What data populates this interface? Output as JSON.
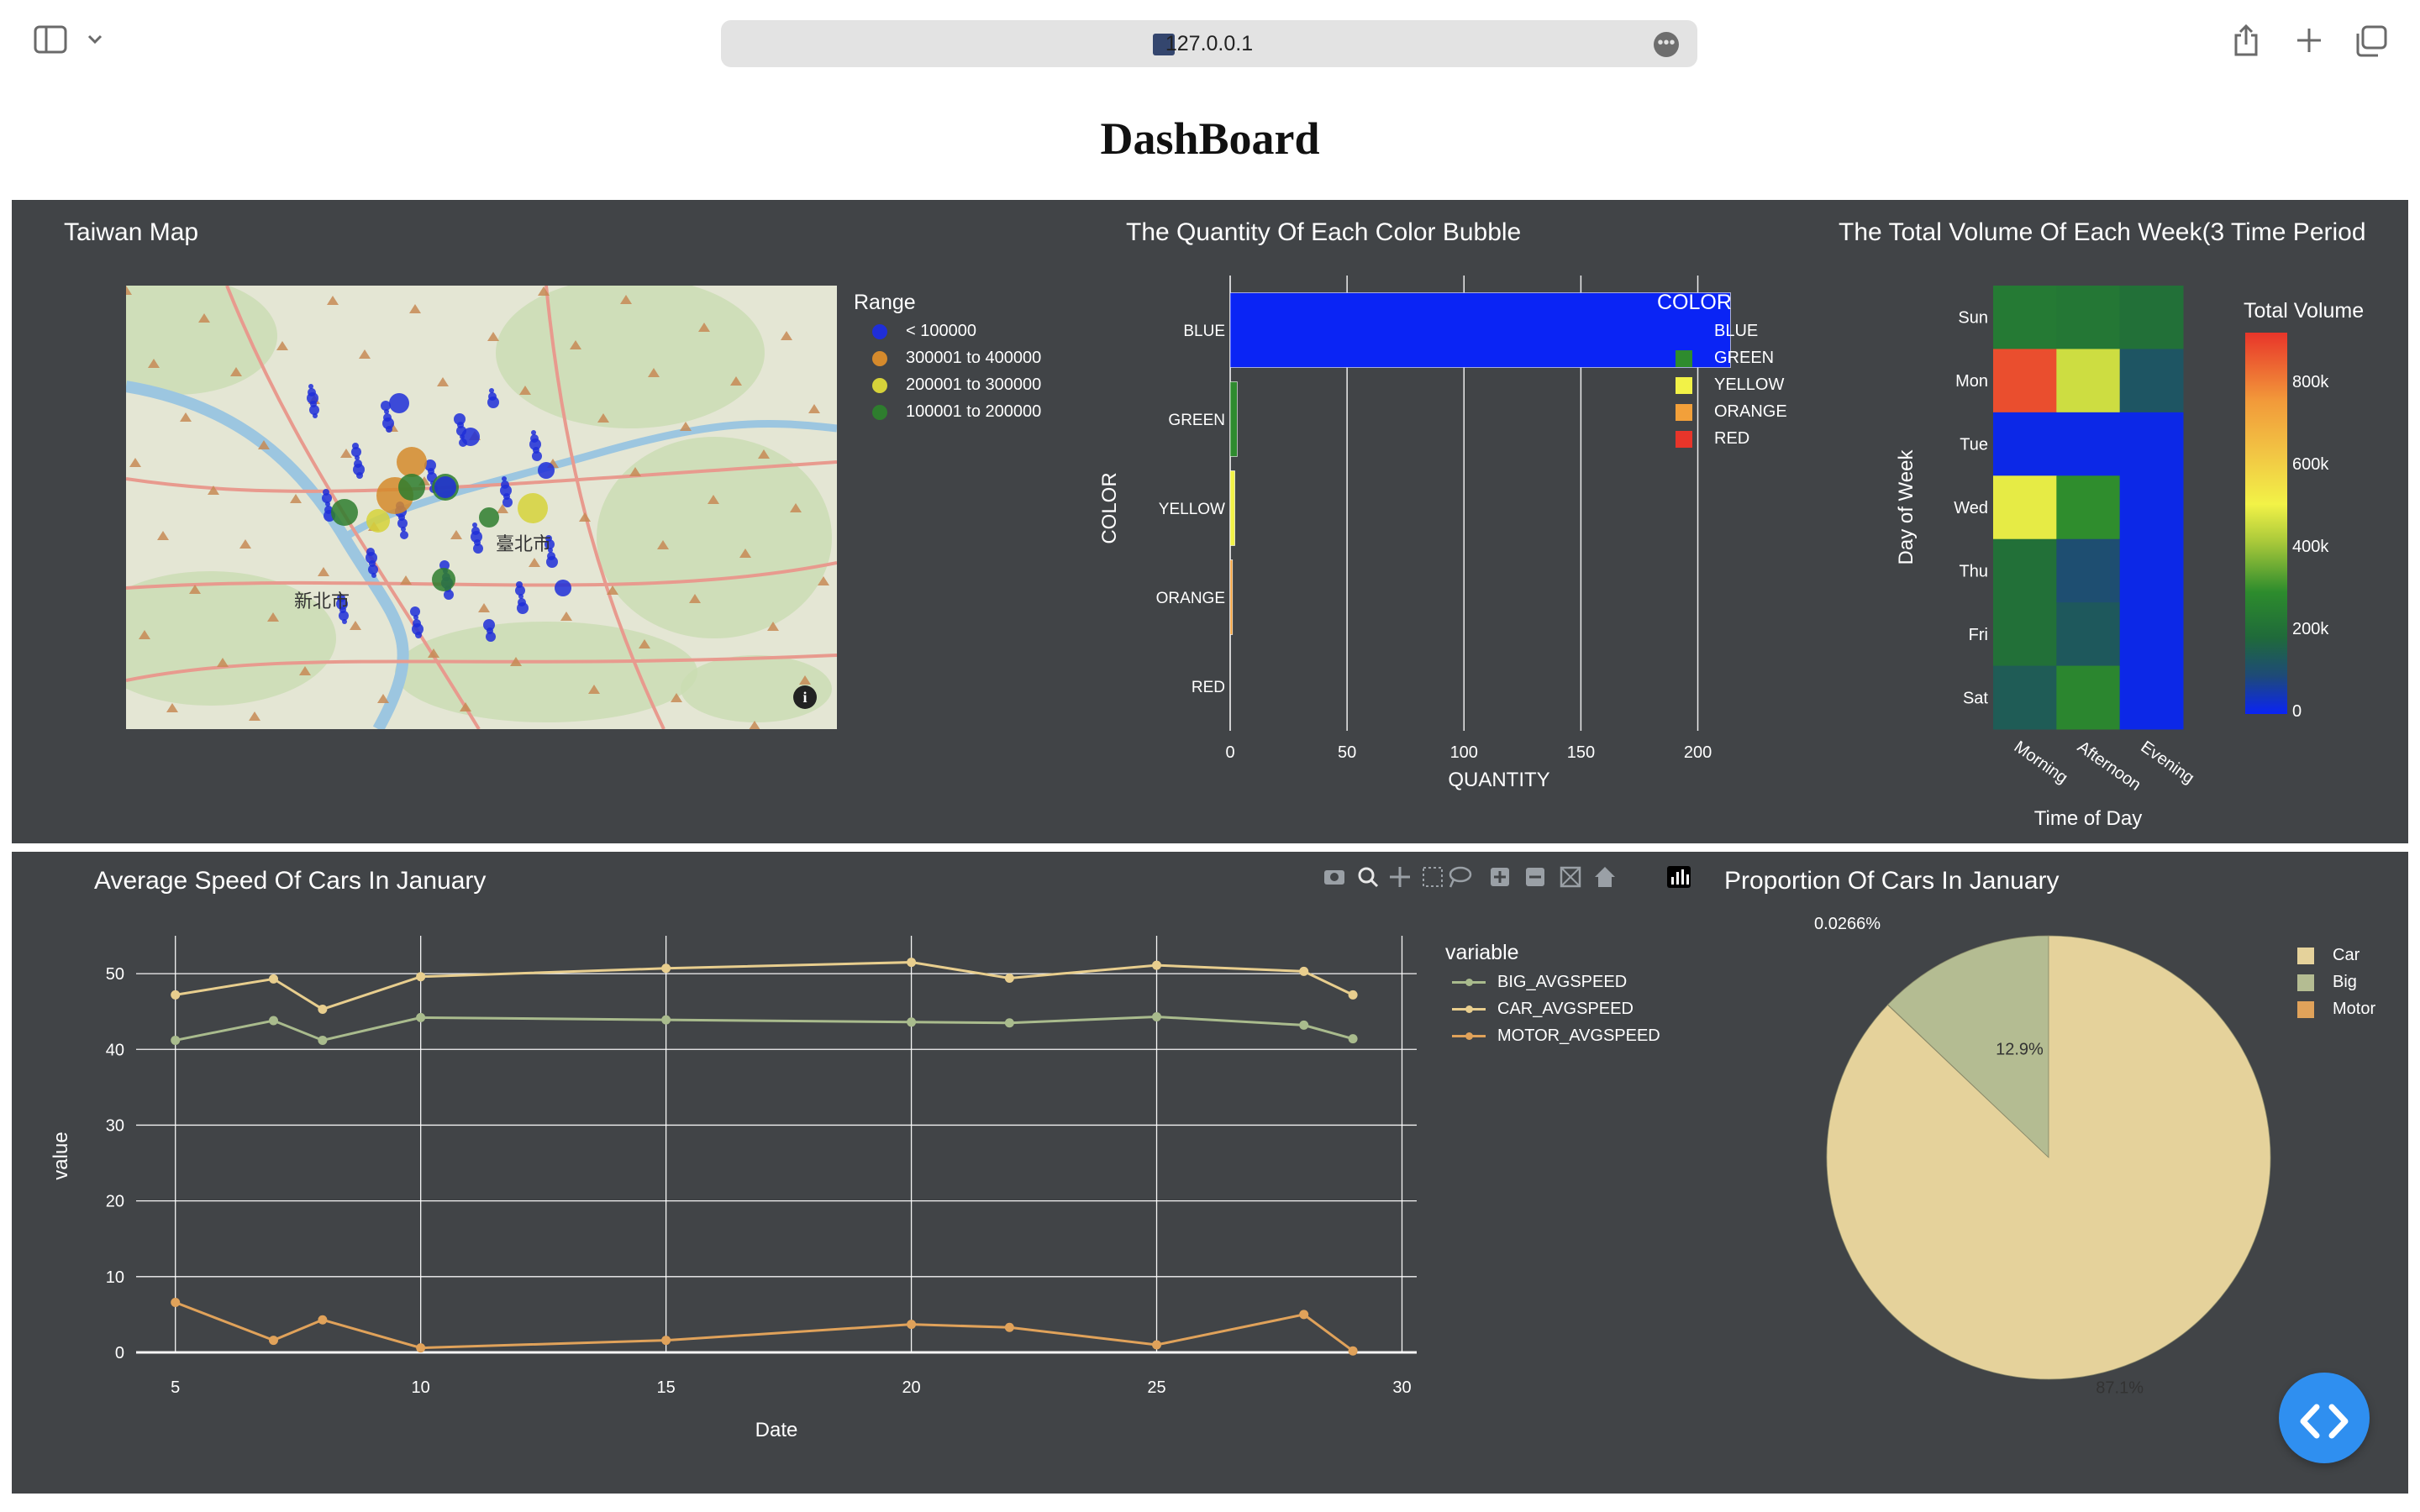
{
  "browser": {
    "url": "127.0.0.1"
  },
  "page_title": "DashBoard",
  "map_panel": {
    "title": "Taiwan Map",
    "legend_title": "Range",
    "legend": [
      {
        "label": "< 100000",
        "color": "#1f2ed8"
      },
      {
        "label": "300001 to 400000",
        "color": "#d58a2c"
      },
      {
        "label": "200001 to 300000",
        "color": "#d6d23a"
      },
      {
        "label": "100001 to 200000",
        "color": "#2e7d2e"
      }
    ],
    "map_labels": [
      "臺北市",
      "新北市"
    ]
  },
  "bar_panel": {
    "title": "The Quantity Of Each Color Bubble",
    "legend_title": "COLOR",
    "legend": [
      {
        "label": "BLUE",
        "color": "#0a24f5"
      },
      {
        "label": "GREEN",
        "color": "#2e8b2e"
      },
      {
        "label": "YELLOW",
        "color": "#f2f247"
      },
      {
        "label": "ORANGE",
        "color": "#f2a03a"
      },
      {
        "label": "RED",
        "color": "#e8352a"
      }
    ]
  },
  "heatmap_panel": {
    "title": "The Total Volume Of Each Week(3 Time Period",
    "colorbar_title": "Total Volume",
    "colorbar_ticks": [
      "800k",
      "600k",
      "400k",
      "200k",
      "0"
    ]
  },
  "line_panel": {
    "title": "Average Speed Of Cars In January",
    "legend_title": "variable",
    "legend": [
      {
        "label": "BIG_AVGSPEED",
        "color": "#a9bb8d"
      },
      {
        "label": "CAR_AVGSPEED",
        "color": "#e8ce8e"
      },
      {
        "label": "MOTOR_AVGSPEED",
        "color": "#e0a25a"
      }
    ]
  },
  "pie_panel": {
    "title": "Proportion Of Cars In January",
    "legend": [
      {
        "label": "Car",
        "color": "#e5d29b"
      },
      {
        "label": "Big",
        "color": "#b4bc92"
      },
      {
        "label": "Motor",
        "color": "#e0a25a"
      }
    ]
  },
  "chart_data": [
    {
      "type": "bar",
      "orientation": "horizontal",
      "categories": [
        "BLUE",
        "GREEN",
        "YELLOW",
        "ORANGE",
        "RED"
      ],
      "values": [
        214,
        3,
        2,
        1,
        0
      ],
      "colors": [
        "#0a24f5",
        "#2e8b2e",
        "#f2f247",
        "#f2a03a",
        "#e8352a"
      ],
      "xlabel": "QUANTITY",
      "ylabel": "COLOR",
      "xlim": [
        0,
        230
      ],
      "xticks": [
        0,
        50,
        100,
        150,
        200
      ]
    },
    {
      "type": "heatmap",
      "x": [
        "Morning",
        "Afternoon",
        "Evening"
      ],
      "y": [
        "Sun",
        "Mon",
        "Tue",
        "Wed",
        "Thu",
        "Fri",
        "Sat"
      ],
      "z": [
        [
          230000,
          220000,
          200000
        ],
        [
          860000,
          450000,
          120000
        ],
        [
          10000,
          10000,
          10000
        ],
        [
          480000,
          290000,
          10000
        ],
        [
          200000,
          100000,
          10000
        ],
        [
          200000,
          130000,
          10000
        ],
        [
          140000,
          270000,
          10000
        ]
      ],
      "xlabel": "Time of Day",
      "ylabel": "Day of Week",
      "zlim": [
        0,
        900000
      ]
    },
    {
      "type": "line",
      "x": [
        5,
        7,
        8,
        10,
        15,
        20,
        22,
        25,
        28,
        29
      ],
      "series": [
        {
          "name": "BIG_AVGSPEED",
          "values": [
            41.2,
            43.8,
            41.2,
            44.2,
            43.9,
            43.6,
            43.5,
            44.3,
            43.2,
            41.4
          ]
        },
        {
          "name": "CAR_AVGSPEED",
          "values": [
            47.2,
            49.3,
            45.3,
            49.6,
            50.7,
            51.5,
            49.4,
            51.1,
            50.3,
            47.2
          ]
        },
        {
          "name": "MOTOR_AVGSPEED",
          "values": [
            6.6,
            1.6,
            4.3,
            0.6,
            1.6,
            3.7,
            3.3,
            1.0,
            5.0,
            0.2
          ]
        }
      ],
      "xlabel": "Date",
      "ylabel": "value",
      "xlim": [
        4.2,
        30.3
      ],
      "ylim": [
        0,
        55
      ],
      "xticks": [
        5,
        10,
        15,
        20,
        25,
        30
      ],
      "yticks": [
        0,
        10,
        20,
        30,
        40,
        50
      ]
    },
    {
      "type": "pie",
      "labels": [
        "Car",
        "Big",
        "Motor"
      ],
      "values": [
        87.1,
        12.9,
        0.0266
      ],
      "value_labels": [
        "87.1%",
        "12.9%",
        "0.0266%"
      ]
    }
  ]
}
